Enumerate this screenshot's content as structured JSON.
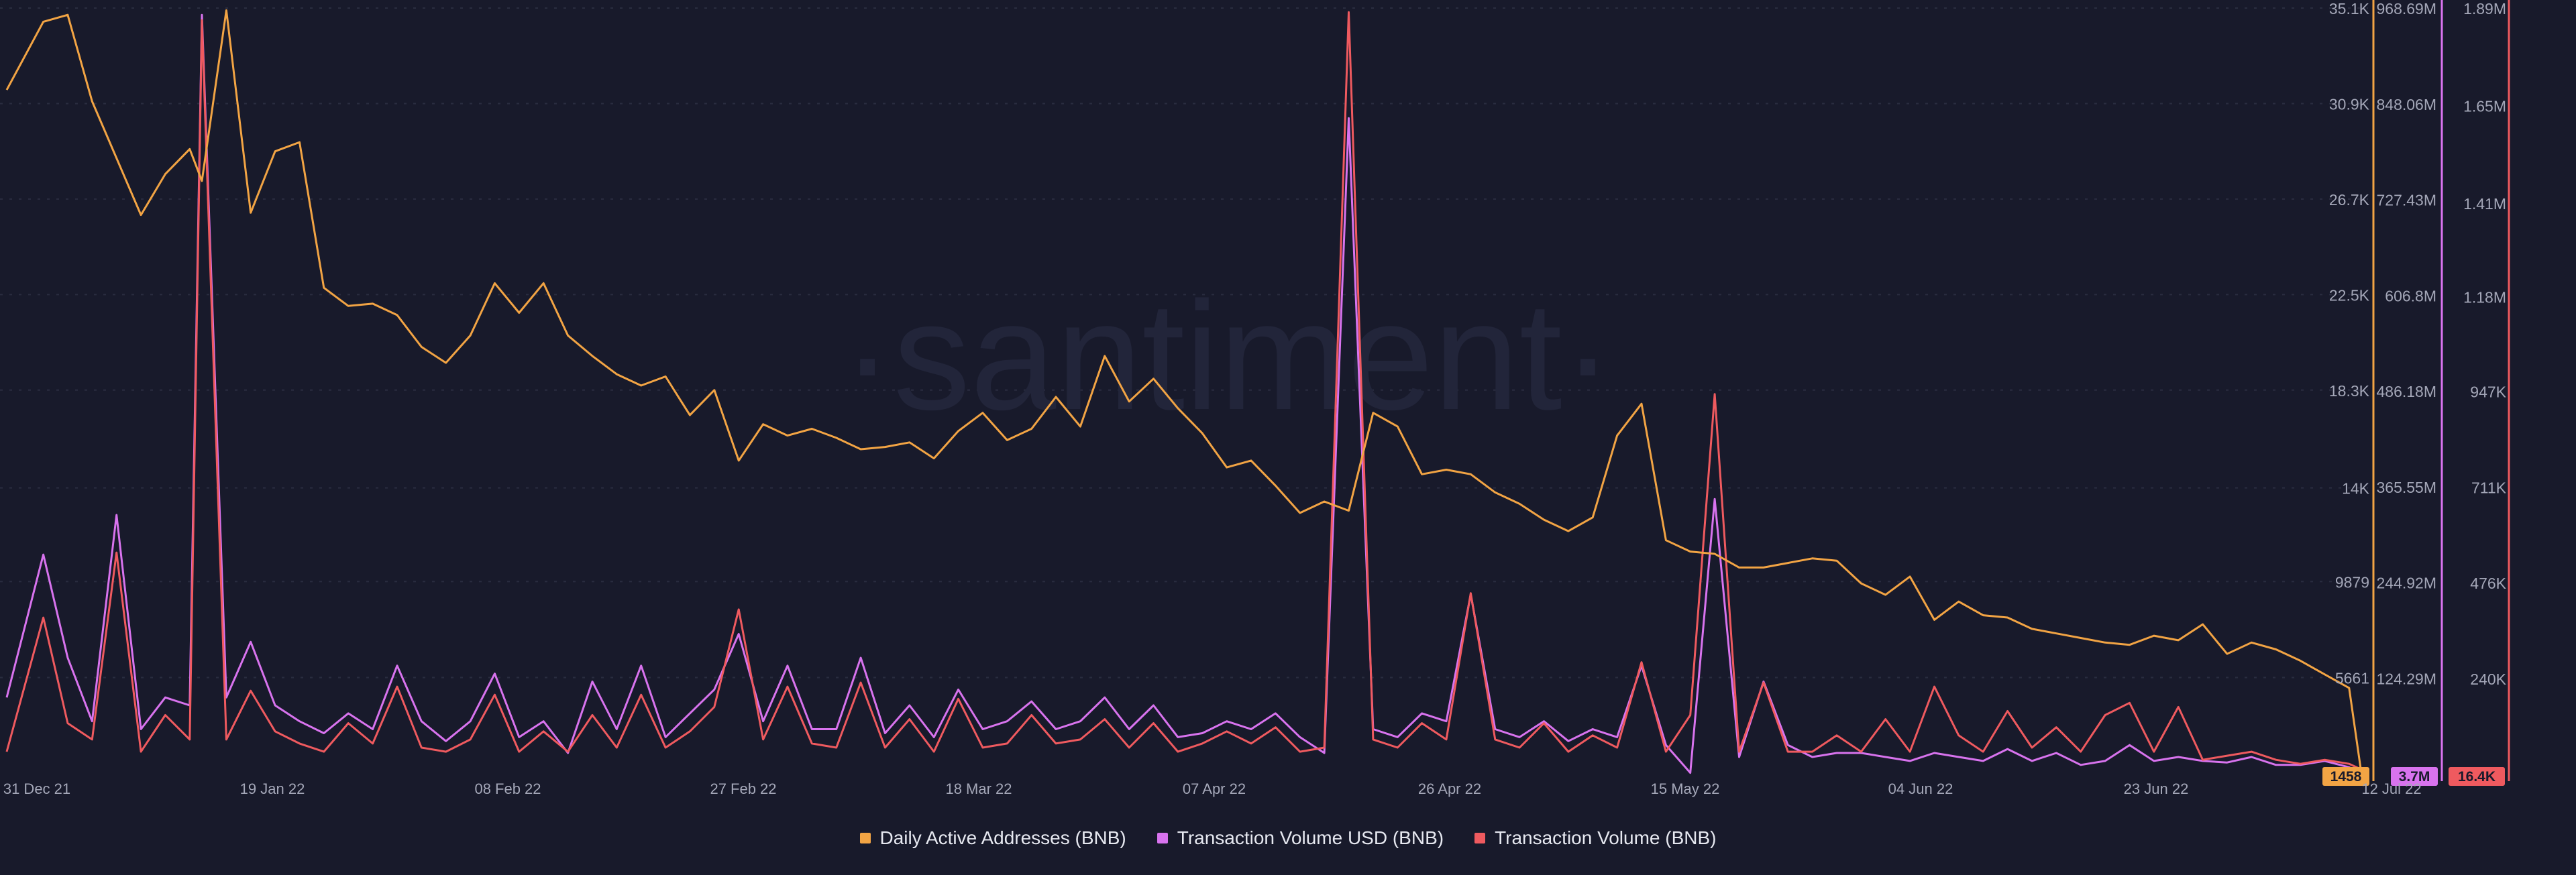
{
  "chart_data": {
    "type": "line",
    "watermark": "·santiment·",
    "x_tick_labels": [
      "31 Dec 21",
      "19 Jan 22",
      "08 Feb 22",
      "27 Feb 22",
      "18 Mar 22",
      "07 Apr 22",
      "26 Apr 22",
      "15 May 22",
      "04 Jun 22",
      "23 Jun 22",
      "12 Jul 22"
    ],
    "grid": true,
    "legend_position": "bottom",
    "colors": {
      "background": "#181a2b",
      "grid": "#2a2d40",
      "axis_text": "#a4a7b8",
      "daily_active_addresses": "#f2a444",
      "transaction_volume_usd": "#d873ee",
      "transaction_volume": "#ef5a5f"
    },
    "axes": [
      {
        "id": "daa",
        "series": "Daily Active Addresses (BNB)",
        "ylim": [
          1400,
          35100
        ],
        "tick_labels": [
          "35.1K",
          "30.9K",
          "26.7K",
          "22.5K",
          "18.3K",
          "14K",
          "9879",
          "5661"
        ],
        "tick_values": [
          35100,
          30900,
          26700,
          22500,
          18300,
          14000,
          9879,
          5661
        ],
        "current_value": "1458"
      },
      {
        "id": "usd",
        "series": "Transaction Volume USD (BNB)",
        "ylim": [
          3000000,
          968690000
        ],
        "tick_labels": [
          "968.69M",
          "848.06M",
          "727.43M",
          "606.8M",
          "486.18M",
          "365.55M",
          "244.92M",
          "124.29M"
        ],
        "tick_values": [
          968690000,
          848060000,
          727430000,
          606800000,
          486180000,
          365550000,
          244920000,
          124290000
        ],
        "current_value": "3.7M"
      },
      {
        "id": "vol",
        "series": "Transaction Volume (BNB)",
        "ylim": [
          4000,
          1890000
        ],
        "tick_labels": [
          "1.89M",
          "1.65M",
          "1.41M",
          "1.18M",
          "947K",
          "711K",
          "476K",
          "240K"
        ],
        "tick_values": [
          1890000,
          1650000,
          1410000,
          1180000,
          947000,
          711000,
          476000,
          240000
        ],
        "current_value": "16.4K"
      }
    ],
    "series": [
      {
        "name": "Daily Active Addresses (BNB)",
        "axis": "daa",
        "x": [
          "2021-12-31",
          "2022-01-03",
          "2022-01-05",
          "2022-01-07",
          "2022-01-09",
          "2022-01-11",
          "2022-01-13",
          "2022-01-15",
          "2022-01-16",
          "2022-01-18",
          "2022-01-20",
          "2022-01-22",
          "2022-01-24",
          "2022-01-26",
          "2022-01-28",
          "2022-01-30",
          "2022-02-01",
          "2022-02-03",
          "2022-02-05",
          "2022-02-07",
          "2022-02-09",
          "2022-02-11",
          "2022-02-13",
          "2022-02-15",
          "2022-02-17",
          "2022-02-19",
          "2022-02-21",
          "2022-02-23",
          "2022-02-25",
          "2022-02-27",
          "2022-03-01",
          "2022-03-03",
          "2022-03-05",
          "2022-03-07",
          "2022-03-09",
          "2022-03-11",
          "2022-03-13",
          "2022-03-15",
          "2022-03-17",
          "2022-03-19",
          "2022-03-21",
          "2022-03-23",
          "2022-03-25",
          "2022-03-27",
          "2022-03-29",
          "2022-03-31",
          "2022-04-02",
          "2022-04-04",
          "2022-04-06",
          "2022-04-08",
          "2022-04-10",
          "2022-04-12",
          "2022-04-14",
          "2022-04-16",
          "2022-04-18",
          "2022-04-20",
          "2022-04-22",
          "2022-04-24",
          "2022-04-26",
          "2022-04-28",
          "2022-04-30",
          "2022-05-02",
          "2022-05-04",
          "2022-05-06",
          "2022-05-08",
          "2022-05-10",
          "2022-05-12",
          "2022-05-14",
          "2022-05-16",
          "2022-05-18",
          "2022-05-20",
          "2022-05-22",
          "2022-05-24",
          "2022-05-26",
          "2022-05-28",
          "2022-05-30",
          "2022-06-01",
          "2022-06-03",
          "2022-06-05",
          "2022-06-07",
          "2022-06-09",
          "2022-06-11",
          "2022-06-13",
          "2022-06-15",
          "2022-06-17",
          "2022-06-19",
          "2022-06-21",
          "2022-06-23",
          "2022-06-25",
          "2022-06-27",
          "2022-06-29",
          "2022-07-01",
          "2022-07-03",
          "2022-07-05",
          "2022-07-07",
          "2022-07-09",
          "2022-07-11",
          "2022-07-12"
        ],
        "values": [
          31500,
          34500,
          34800,
          31000,
          28500,
          26000,
          27800,
          28900,
          27500,
          35000,
          26100,
          28800,
          29200,
          22800,
          22000,
          22100,
          21600,
          20200,
          19500,
          20700,
          23000,
          21700,
          23000,
          20700,
          19800,
          19000,
          18500,
          18900,
          17200,
          18300,
          15200,
          16800,
          16300,
          16600,
          16200,
          15700,
          15800,
          16000,
          15300,
          16500,
          17300,
          16100,
          16600,
          18000,
          16700,
          19800,
          17800,
          18800,
          17500,
          16400,
          14900,
          15200,
          14100,
          12900,
          13400,
          13000,
          17300,
          16700,
          14600,
          14800,
          14600,
          13800,
          13300,
          12600,
          12100,
          12700,
          16300,
          17700,
          11700,
          11200,
          11100,
          10500,
          10500,
          10700,
          10900,
          10800,
          9800,
          9300,
          10100,
          8200,
          9000,
          8400,
          8300,
          7800,
          7600,
          7400,
          7200,
          7100,
          7500,
          7300,
          8000,
          6700,
          7200,
          6900,
          6400,
          5800,
          5200,
          1458
        ]
      },
      {
        "name": "Transaction Volume USD (BNB)",
        "axis": "usd",
        "x": [
          "2021-12-31",
          "2022-01-03",
          "2022-01-05",
          "2022-01-07",
          "2022-01-09",
          "2022-01-11",
          "2022-01-13",
          "2022-01-15",
          "2022-01-16",
          "2022-01-18",
          "2022-01-20",
          "2022-01-22",
          "2022-01-24",
          "2022-01-26",
          "2022-01-28",
          "2022-01-30",
          "2022-02-01",
          "2022-02-03",
          "2022-02-05",
          "2022-02-07",
          "2022-02-09",
          "2022-02-11",
          "2022-02-13",
          "2022-02-15",
          "2022-02-17",
          "2022-02-19",
          "2022-02-21",
          "2022-02-23",
          "2022-02-25",
          "2022-02-27",
          "2022-03-01",
          "2022-03-03",
          "2022-03-05",
          "2022-03-07",
          "2022-03-09",
          "2022-03-11",
          "2022-03-13",
          "2022-03-15",
          "2022-03-17",
          "2022-03-19",
          "2022-03-21",
          "2022-03-23",
          "2022-03-25",
          "2022-03-27",
          "2022-03-29",
          "2022-03-31",
          "2022-04-02",
          "2022-04-04",
          "2022-04-06",
          "2022-04-08",
          "2022-04-10",
          "2022-04-12",
          "2022-04-14",
          "2022-04-16",
          "2022-04-18",
          "2022-04-20",
          "2022-04-22",
          "2022-04-24",
          "2022-04-26",
          "2022-04-28",
          "2022-04-30",
          "2022-05-02",
          "2022-05-04",
          "2022-05-06",
          "2022-05-08",
          "2022-05-10",
          "2022-05-12",
          "2022-05-14",
          "2022-05-16",
          "2022-05-18",
          "2022-05-20",
          "2022-05-22",
          "2022-05-24",
          "2022-05-26",
          "2022-05-28",
          "2022-05-30",
          "2022-06-01",
          "2022-06-03",
          "2022-06-05",
          "2022-06-07",
          "2022-06-09",
          "2022-06-11",
          "2022-06-13",
          "2022-06-15",
          "2022-06-17",
          "2022-06-19",
          "2022-06-21",
          "2022-06-23",
          "2022-06-25",
          "2022-06-27",
          "2022-06-29",
          "2022-07-01",
          "2022-07-03",
          "2022-07-05",
          "2022-07-07",
          "2022-07-09",
          "2022-07-11",
          "2022-07-12"
        ],
        "values": [
          100000000,
          280000000,
          150000000,
          70000000,
          330000000,
          60000000,
          100000000,
          90000000,
          960000000,
          100000000,
          170000000,
          90000000,
          70000000,
          55000000,
          80000000,
          60000000,
          140000000,
          70000000,
          45000000,
          70000000,
          130000000,
          50000000,
          70000000,
          30000000,
          120000000,
          60000000,
          140000000,
          50000000,
          80000000,
          110000000,
          180000000,
          70000000,
          140000000,
          60000000,
          60000000,
          150000000,
          55000000,
          90000000,
          50000000,
          110000000,
          60000000,
          70000000,
          95000000,
          60000000,
          70000000,
          100000000,
          60000000,
          90000000,
          50000000,
          55000000,
          70000000,
          60000000,
          80000000,
          50000000,
          30000000,
          830000000,
          60000000,
          50000000,
          80000000,
          70000000,
          230000000,
          60000000,
          50000000,
          70000000,
          45000000,
          60000000,
          50000000,
          140000000,
          40000000,
          5000000,
          350000000,
          25000000,
          120000000,
          40000000,
          25000000,
          30000000,
          30000000,
          25000000,
          20000000,
          30000000,
          25000000,
          20000000,
          35000000,
          20000000,
          30000000,
          15000000,
          20000000,
          40000000,
          20000000,
          25000000,
          20000000,
          18000000,
          25000000,
          15000000,
          15000000,
          20000000,
          12000000,
          3700000
        ]
      },
      {
        "name": "Transaction Volume (BNB)",
        "axis": "vol",
        "x": [
          "2021-12-31",
          "2022-01-03",
          "2022-01-05",
          "2022-01-07",
          "2022-01-09",
          "2022-01-11",
          "2022-01-13",
          "2022-01-15",
          "2022-01-16",
          "2022-01-18",
          "2022-01-20",
          "2022-01-22",
          "2022-01-24",
          "2022-01-26",
          "2022-01-28",
          "2022-01-30",
          "2022-02-01",
          "2022-02-03",
          "2022-02-05",
          "2022-02-07",
          "2022-02-09",
          "2022-02-11",
          "2022-02-13",
          "2022-02-15",
          "2022-02-17",
          "2022-02-19",
          "2022-02-21",
          "2022-02-23",
          "2022-02-25",
          "2022-02-27",
          "2022-03-01",
          "2022-03-03",
          "2022-03-05",
          "2022-03-07",
          "2022-03-09",
          "2022-03-11",
          "2022-03-13",
          "2022-03-15",
          "2022-03-17",
          "2022-03-19",
          "2022-03-21",
          "2022-03-23",
          "2022-03-25",
          "2022-03-27",
          "2022-03-29",
          "2022-03-31",
          "2022-04-02",
          "2022-04-04",
          "2022-04-06",
          "2022-04-08",
          "2022-04-10",
          "2022-04-12",
          "2022-04-14",
          "2022-04-16",
          "2022-04-18",
          "2022-04-20",
          "2022-04-22",
          "2022-04-24",
          "2022-04-26",
          "2022-04-28",
          "2022-04-30",
          "2022-05-02",
          "2022-05-04",
          "2022-05-06",
          "2022-05-08",
          "2022-05-10",
          "2022-05-12",
          "2022-05-14",
          "2022-05-16",
          "2022-05-18",
          "2022-05-20",
          "2022-05-22",
          "2022-05-24",
          "2022-05-26",
          "2022-05-28",
          "2022-05-30",
          "2022-06-01",
          "2022-06-03",
          "2022-06-05",
          "2022-06-07",
          "2022-06-09",
          "2022-06-11",
          "2022-06-13",
          "2022-06-15",
          "2022-06-17",
          "2022-06-19",
          "2022-06-21",
          "2022-06-23",
          "2022-06-25",
          "2022-06-27",
          "2022-06-29",
          "2022-07-01",
          "2022-07-03",
          "2022-07-05",
          "2022-07-07",
          "2022-07-09",
          "2022-07-11",
          "2022-07-12"
        ],
        "values": [
          60000,
          390000,
          130000,
          90000,
          550000,
          60000,
          150000,
          90000,
          1860000,
          90000,
          210000,
          110000,
          80000,
          60000,
          130000,
          80000,
          220000,
          70000,
          60000,
          90000,
          200000,
          60000,
          110000,
          60000,
          150000,
          70000,
          200000,
          70000,
          110000,
          170000,
          410000,
          90000,
          220000,
          80000,
          70000,
          230000,
          70000,
          140000,
          60000,
          190000,
          70000,
          80000,
          150000,
          80000,
          90000,
          140000,
          70000,
          130000,
          60000,
          80000,
          110000,
          80000,
          120000,
          60000,
          70000,
          1880000,
          90000,
          70000,
          130000,
          90000,
          450000,
          90000,
          70000,
          130000,
          60000,
          100000,
          70000,
          280000,
          60000,
          150000,
          940000,
          60000,
          230000,
          60000,
          60000,
          100000,
          60000,
          140000,
          60000,
          220000,
          100000,
          60000,
          160000,
          70000,
          120000,
          60000,
          150000,
          180000,
          60000,
          170000,
          40000,
          50000,
          60000,
          40000,
          30000,
          40000,
          30000,
          16400
        ]
      }
    ],
    "legend": [
      "Daily Active Addresses (BNB)",
      "Transaction Volume USD (BNB)",
      "Transaction Volume (BNB)"
    ]
  }
}
